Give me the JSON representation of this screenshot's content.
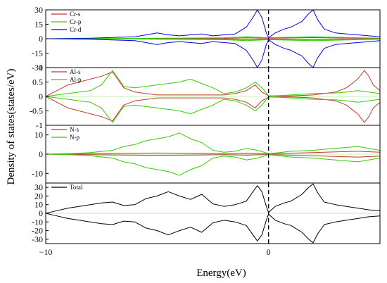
{
  "chart_data": [
    {
      "type": "line",
      "ylim": [
        -30,
        30
      ],
      "yticks": [
        -30,
        -15,
        0,
        15,
        30
      ],
      "legend_position": "top-left",
      "series": [
        {
          "name": "Cr-s",
          "color": "#c0392b",
          "x": [
            -10,
            -6,
            -5,
            -3,
            -2,
            -1,
            0,
            1,
            2,
            3,
            4,
            5
          ],
          "y": [
            0,
            0.1,
            0.2,
            0.3,
            0.4,
            1,
            0.5,
            0.8,
            1.2,
            0.8,
            0.5,
            0.3
          ]
        },
        {
          "name": "Cr-p",
          "color": "#33cc00",
          "x": [
            -10,
            -6,
            -5,
            -3,
            -2,
            -1,
            0,
            1,
            2,
            3,
            4,
            5
          ],
          "y": [
            0,
            0.3,
            0.5,
            0.8,
            1,
            2,
            1,
            1.5,
            2,
            1.5,
            1,
            0.5
          ]
        },
        {
          "name": "Cr-d",
          "color": "#0000ee",
          "x": [
            -10,
            -8,
            -6,
            -5.5,
            -5,
            -4.5,
            -4,
            -3.5,
            -3,
            -2.5,
            -2,
            -1.5,
            -1,
            -0.7,
            -0.5,
            -0.3,
            -0.1,
            0,
            0.3,
            0.7,
            1,
            1.5,
            1.8,
            2,
            2.2,
            2.5,
            3,
            3.5,
            4,
            4.5,
            5
          ],
          "y": [
            0,
            0.5,
            2,
            4,
            6,
            4,
            3,
            4,
            5,
            3,
            4,
            5,
            12,
            22,
            30,
            22,
            6,
            1,
            6,
            10,
            12,
            18,
            26,
            30,
            20,
            10,
            6,
            5,
            4,
            3,
            2
          ]
        }
      ]
    },
    {
      "type": "line",
      "ylim": [
        -1,
        1
      ],
      "yticks": [
        -1,
        -0.5,
        0,
        0.5,
        1
      ],
      "legend_position": "top-left",
      "series": [
        {
          "name": "Al-s",
          "color": "#c0392b",
          "x": [
            -10,
            -9.5,
            -9,
            -8.5,
            -8,
            -7.5,
            -7,
            -6.5,
            -6,
            -5,
            -4,
            -3,
            -2,
            -1.5,
            -1,
            -0.6,
            -0.3,
            0,
            0.5,
            1,
            2,
            3,
            3.5,
            4,
            4.3,
            4.5,
            4.7,
            5
          ],
          "y": [
            0,
            0.2,
            0.4,
            0.5,
            0.6,
            0.7,
            0.85,
            0.3,
            0.15,
            0.05,
            0.05,
            0.05,
            0.05,
            0.1,
            0.2,
            0.4,
            0.15,
            0.02,
            0.02,
            0.02,
            0.05,
            0.15,
            0.3,
            0.6,
            0.9,
            0.7,
            0.4,
            0.2
          ]
        },
        {
          "name": "Al-p",
          "color": "#33cc00",
          "x": [
            -10,
            -9.5,
            -9,
            -8.5,
            -8,
            -7.5,
            -7,
            -6.5,
            -6,
            -5,
            -4.5,
            -4,
            -3.5,
            -3,
            -2.5,
            -2,
            -1.5,
            -1,
            -0.6,
            -0.3,
            0,
            0.5,
            1,
            2,
            3,
            3.5,
            4,
            4.5,
            5
          ],
          "y": [
            0,
            0.05,
            0.1,
            0.15,
            0.2,
            0.4,
            0.9,
            0.35,
            0.3,
            0.4,
            0.45,
            0.5,
            0.6,
            0.45,
            0.3,
            0.1,
            0.15,
            0.3,
            0.5,
            0.3,
            0.02,
            0.03,
            0.05,
            0.1,
            0.12,
            0.15,
            0.2,
            0.15,
            0.1
          ]
        }
      ]
    },
    {
      "type": "line",
      "ylim": [
        -15,
        15
      ],
      "yticks": [
        -10,
        0,
        10
      ],
      "legend_position": "top-left",
      "series": [
        {
          "name": "N-s",
          "color": "#c0392b",
          "x": [
            -10,
            -9,
            -8,
            -7,
            -6,
            -5,
            -4,
            -3,
            -2,
            -1,
            0,
            1,
            2,
            3,
            4,
            5
          ],
          "y": [
            0,
            0.2,
            0.3,
            0.4,
            0.5,
            0.6,
            0.5,
            0.4,
            0.3,
            0.5,
            0.2,
            0.5,
            0.8,
            1.2,
            1.5,
            1
          ]
        },
        {
          "name": "N-p",
          "color": "#33cc00",
          "x": [
            -10,
            -9,
            -8,
            -7,
            -6.5,
            -6,
            -5.5,
            -5,
            -4.5,
            -4,
            -3.5,
            -3,
            -2.5,
            -2,
            -1.5,
            -1,
            -0.5,
            0,
            0.5,
            1,
            2,
            3,
            4,
            5
          ],
          "y": [
            0,
            0.3,
            0.8,
            2,
            4,
            5,
            7,
            8,
            9,
            11,
            8,
            6,
            2,
            1,
            1.5,
            3,
            2,
            0.3,
            0.8,
            1.5,
            2,
            3,
            4,
            2
          ]
        }
      ]
    },
    {
      "type": "line",
      "ylim": [
        -35,
        35
      ],
      "yticks": [
        -30,
        -20,
        -10,
        0,
        10,
        20,
        30
      ],
      "legend_position": "top-left",
      "xlim": [
        -10,
        5
      ],
      "xticks": [
        -10,
        0
      ],
      "xlabel": "Energy(eV)",
      "series": [
        {
          "name": "Total",
          "color": "#000000",
          "x": [
            -10,
            -9.5,
            -9,
            -8.5,
            -8,
            -7.5,
            -7,
            -6.5,
            -6,
            -5.5,
            -5,
            -4.5,
            -4,
            -3.5,
            -3,
            -2.5,
            -2,
            -1.5,
            -1,
            -0.7,
            -0.5,
            -0.3,
            -0.1,
            0,
            0.3,
            0.7,
            1,
            1.5,
            1.8,
            2,
            2.2,
            2.5,
            3,
            3.5,
            4,
            4.5,
            5
          ],
          "y": [
            0,
            3,
            6,
            8,
            10,
            12,
            13,
            9,
            10,
            17,
            20,
            25,
            20,
            16,
            22,
            11,
            8,
            10,
            14,
            25,
            32,
            25,
            8,
            1,
            8,
            12,
            14,
            22,
            30,
            34,
            24,
            13,
            10,
            8,
            6,
            4,
            3
          ]
        }
      ]
    }
  ],
  "shared": {
    "ylabel": "Density of states(states/eV)",
    "fermi_level": 0
  }
}
